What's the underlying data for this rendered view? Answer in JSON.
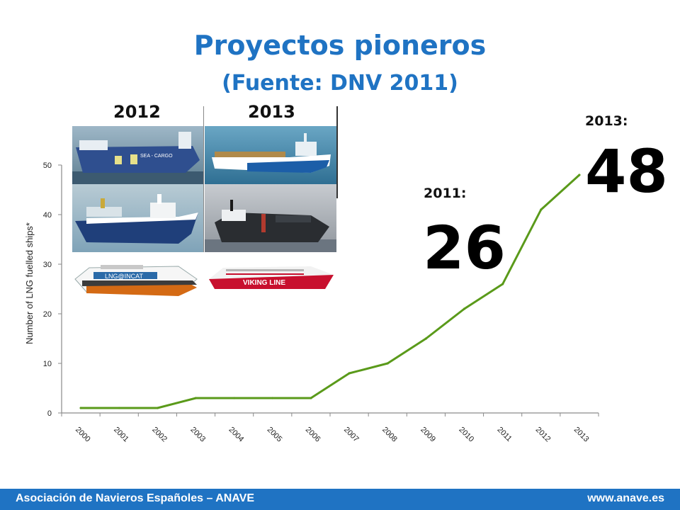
{
  "slide": {
    "title": "Proyectos pioneros",
    "subtitle": "(Fuente: DNV 2011)"
  },
  "photos": {
    "col_2012_label": "2012",
    "col_2013_label": "2013",
    "ship_sea_cargo_text": "SEA - CARGO",
    "ship_incat_text": "LNG@INCAT",
    "ship_viking_text": "VIKING LINE"
  },
  "callouts": {
    "y2011_label": "2011:",
    "y2011_value": "26",
    "y2013_label": "2013:",
    "y2013_value": "48"
  },
  "footer": {
    "left": "Asociación de Navieros Españoles – ANAVE",
    "right": "www.anave.es"
  },
  "colors": {
    "brand_blue": "#1f73c3",
    "line_green": "#5a9a1a"
  },
  "chart_data": {
    "type": "line",
    "ylabel": "Number of LNG fuelled ships*",
    "ylim": [
      0,
      50
    ],
    "yticks": [
      0,
      10,
      20,
      30,
      40,
      50
    ],
    "x": [
      "2000",
      "2001",
      "2002",
      "2003",
      "2004",
      "2005",
      "2006",
      "2007",
      "2008",
      "2009",
      "2010",
      "2011",
      "2012",
      "2013"
    ],
    "series": [
      {
        "values": [
          1,
          1,
          1,
          3,
          3,
          3,
          3,
          8,
          10,
          15,
          21,
          26,
          41,
          48
        ]
      }
    ]
  }
}
